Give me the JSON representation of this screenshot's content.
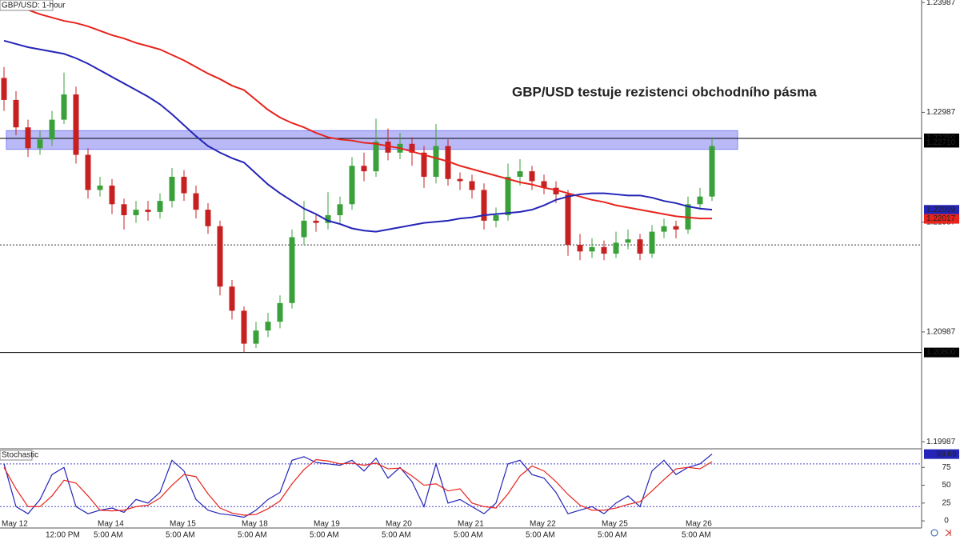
{
  "chart_data": [
    {
      "type": "candlestick",
      "title": "GBP/USD: 1-hour",
      "annotation": "GBP/USD testuje rezistenci obchodního pásma",
      "categories": [
        "May 12",
        null,
        null,
        null,
        null,
        null,
        null,
        null,
        "May 14",
        null,
        null,
        null,
        null,
        null,
        "May 15",
        null,
        null,
        null,
        null,
        null,
        "May 18",
        null,
        null,
        null,
        null,
        null,
        "May 19",
        null,
        null,
        null,
        null,
        null,
        "May 20",
        null,
        null,
        null,
        null,
        null,
        "May 21",
        null,
        null,
        null,
        null,
        null,
        "May 22",
        null,
        null,
        null,
        null,
        null,
        "May 25",
        null,
        null,
        null,
        null,
        null,
        null,
        "May 26",
        null,
        null
      ],
      "times": [
        null,
        null,
        null,
        null,
        "12:00 PM",
        null,
        null,
        null,
        "5:00 AM",
        null,
        null,
        null,
        null,
        null,
        "5:00 AM",
        null,
        null,
        null,
        null,
        null,
        "5:00 AM",
        null,
        null,
        null,
        null,
        null,
        "5:00 AM",
        null,
        null,
        null,
        null,
        null,
        "5:00 AM",
        null,
        null,
        null,
        null,
        null,
        "5:00 AM",
        null,
        null,
        null,
        null,
        null,
        "5:00 AM",
        null,
        null,
        null,
        null,
        null,
        "5:00 AM",
        null,
        null,
        null,
        null,
        null,
        null,
        "5:00 AM",
        null,
        null
      ],
      "ohlc": [
        [
          1.233,
          1.234,
          1.23,
          1.231
        ],
        [
          1.231,
          1.2318,
          1.2278,
          1.2285
        ],
        [
          1.2285,
          1.2292,
          1.2258,
          1.2266
        ],
        [
          1.2266,
          1.2282,
          1.226,
          1.2274
        ],
        [
          1.2274,
          1.23,
          1.2268,
          1.2292
        ],
        [
          1.2292,
          1.2335,
          1.2288,
          1.2315
        ],
        [
          1.2315,
          1.2322,
          1.2252,
          1.226
        ],
        [
          1.226,
          1.2266,
          1.222,
          1.2228
        ],
        [
          1.2228,
          1.224,
          1.2222,
          1.2232
        ],
        [
          1.2232,
          1.2238,
          1.2206,
          1.2215
        ],
        [
          1.2215,
          1.222,
          1.2192,
          1.2205
        ],
        [
          1.2205,
          1.2218,
          1.2198,
          1.221
        ],
        [
          1.221,
          1.2218,
          1.22,
          1.2208
        ],
        [
          1.2208,
          1.2225,
          1.2202,
          1.2218
        ],
        [
          1.2218,
          1.2248,
          1.2212,
          1.224
        ],
        [
          1.224,
          1.2246,
          1.2218,
          1.2225
        ],
        [
          1.2225,
          1.2232,
          1.2202,
          1.221
        ],
        [
          1.221,
          1.2216,
          1.2188,
          1.2195
        ],
        [
          1.2195,
          1.22,
          1.2132,
          1.214
        ],
        [
          1.214,
          1.2146,
          1.211,
          1.2118
        ],
        [
          1.2118,
          1.2122,
          1.208,
          1.2088
        ],
        [
          1.2088,
          1.2108,
          1.2084,
          1.21
        ],
        [
          1.21,
          1.2116,
          1.2094,
          1.2108
        ],
        [
          1.2108,
          1.2132,
          1.2102,
          1.2125
        ],
        [
          1.2125,
          1.2192,
          1.212,
          1.2185
        ],
        [
          1.2185,
          1.2218,
          1.2178,
          1.22
        ],
        [
          1.22,
          1.2206,
          1.219,
          1.2198
        ],
        [
          1.2198,
          1.2226,
          1.2192,
          1.2205
        ],
        [
          1.2205,
          1.2222,
          1.2198,
          1.2215
        ],
        [
          1.2215,
          1.2258,
          1.221,
          1.225
        ],
        [
          1.225,
          1.2262,
          1.2236,
          1.2245
        ],
        [
          1.2245,
          1.2293,
          1.224,
          1.2272
        ],
        [
          1.2272,
          1.2284,
          1.2255,
          1.2262
        ],
        [
          1.2262,
          1.228,
          1.2256,
          1.227
        ],
        [
          1.227,
          1.2276,
          1.225,
          1.2262
        ],
        [
          1.2262,
          1.2268,
          1.223,
          1.224
        ],
        [
          1.224,
          1.2288,
          1.2234,
          1.2268
        ],
        [
          1.2268,
          1.2274,
          1.2232,
          1.2238
        ],
        [
          1.2238,
          1.2244,
          1.2228,
          1.2236
        ],
        [
          1.2236,
          1.2242,
          1.222,
          1.2228
        ],
        [
          1.2228,
          1.2234,
          1.2192,
          1.22
        ],
        [
          1.22,
          1.2212,
          1.2194,
          1.2205
        ],
        [
          1.2205,
          1.2252,
          1.22,
          1.224
        ],
        [
          1.224,
          1.2256,
          1.2232,
          1.2245
        ],
        [
          1.2245,
          1.225,
          1.2228,
          1.2236
        ],
        [
          1.2236,
          1.2242,
          1.2224,
          1.223
        ],
        [
          1.223,
          1.2236,
          1.2216,
          1.2224
        ],
        [
          1.2224,
          1.2228,
          1.2168,
          1.2178
        ],
        [
          1.2178,
          1.2188,
          1.2164,
          1.2172
        ],
        [
          1.2172,
          1.2184,
          1.2166,
          1.2176
        ],
        [
          1.2176,
          1.2182,
          1.2164,
          1.217
        ],
        [
          1.217,
          1.219,
          1.2166,
          1.218
        ],
        [
          1.218,
          1.2192,
          1.2174,
          1.2183
        ],
        [
          1.2183,
          1.2188,
          1.2164,
          1.217
        ],
        [
          1.217,
          1.2196,
          1.2166,
          1.219
        ],
        [
          1.219,
          1.2202,
          1.2184,
          1.2195
        ],
        [
          1.2195,
          1.22,
          1.2184,
          1.2192
        ],
        [
          1.2192,
          1.2222,
          1.2188,
          1.2215
        ],
        [
          1.2215,
          1.223,
          1.221,
          1.2222
        ],
        [
          1.2222,
          1.2276,
          1.2218,
          1.2268
        ]
      ],
      "up_color": "#3aa13a",
      "down_color": "#c62020",
      "series": [
        {
          "color": "#e8231c",
          "values": [
            1.24,
            1.2396,
            1.2392,
            1.2388,
            1.2385,
            1.2382,
            1.238,
            1.2377,
            1.2373,
            1.2369,
            1.2366,
            1.2362,
            1.2359,
            1.2356,
            1.2351,
            1.2346,
            1.234,
            1.2334,
            1.2329,
            1.2323,
            1.2319,
            1.231,
            1.2301,
            1.2294,
            1.2289,
            1.2285,
            1.228,
            1.2276,
            1.2274,
            1.2273,
            1.2271,
            1.227,
            1.2268,
            1.2266,
            1.2263,
            1.226,
            1.2257,
            1.2254,
            1.225,
            1.2247,
            1.2244,
            1.2241,
            1.2238,
            1.2235,
            1.2233,
            1.223,
            1.2228,
            1.2225,
            1.2222,
            1.2219,
            1.2217,
            1.2214,
            1.2212,
            1.221,
            1.2208,
            1.2206,
            1.2204,
            1.2203,
            1.2202,
            1.2202
          ]
        },
        {
          "color": "#2424b8",
          "values": [
            1.2364,
            1.2361,
            1.2358,
            1.2356,
            1.2354,
            1.2352,
            1.2348,
            1.2343,
            1.2337,
            1.2331,
            1.2325,
            1.2319,
            1.2313,
            1.2306,
            1.2297,
            1.2287,
            1.2277,
            1.2268,
            1.2262,
            1.2257,
            1.2253,
            1.2243,
            1.2233,
            1.2225,
            1.2218,
            1.2211,
            1.2206,
            1.22,
            1.2197,
            1.2193,
            1.2191,
            1.219,
            1.2192,
            1.2194,
            1.2196,
            1.2198,
            1.2199,
            1.22,
            1.2202,
            1.2203,
            1.2205,
            1.2206,
            1.2207,
            1.2208,
            1.221,
            1.2214,
            1.2219,
            1.2222,
            1.2224,
            1.2225,
            1.2225,
            1.2224,
            1.2223,
            1.2223,
            1.2221,
            1.2218,
            1.2216,
            1.2213,
            1.2211,
            1.221
          ]
        }
      ],
      "ylim": [
        1.1993,
        1.2401
      ],
      "yticks": [
        1.19987,
        1.20987,
        1.21987,
        1.22987,
        1.23987
      ],
      "zone": [
        1.2265,
        1.2282
      ],
      "zone_color": "#8080f0",
      "hlines": [
        1.2275,
        1.208
      ],
      "dotted_line": 1.2178,
      "price_labels": [
        {
          "value": 1.2275,
          "label": "1.22750",
          "color": "#000000"
        },
        {
          "value": 1.2271,
          "label": "1.22710",
          "color": "#000000"
        },
        {
          "value": 1.22099,
          "label": "1.22099",
          "color": "#2424b8"
        },
        {
          "value": 1.22017,
          "label": "1.22017",
          "color": "#e8231c"
        },
        {
          "value": 1.208,
          "label": "1.20800",
          "color": "#000000"
        }
      ]
    },
    {
      "type": "line",
      "title": "Stochastic",
      "series": [
        {
          "color": "#2424b8",
          "values": [
            80,
            20,
            10,
            30,
            65,
            75,
            20,
            10,
            15,
            18,
            12,
            30,
            25,
            40,
            85,
            70,
            30,
            15,
            10,
            8,
            5,
            15,
            30,
            40,
            85,
            90,
            82,
            80,
            78,
            85,
            70,
            88,
            60,
            75,
            55,
            20,
            80,
            25,
            30,
            20,
            10,
            25,
            80,
            85,
            65,
            60,
            40,
            10,
            15,
            20,
            10,
            25,
            35,
            20,
            70,
            85,
            65,
            75,
            80,
            93.69
          ]
        },
        {
          "color": "#e8231c",
          "values": [
            75,
            45,
            20,
            20,
            35,
            57,
            53,
            35,
            15,
            14,
            15,
            20,
            22,
            32,
            50,
            65,
            62,
            38,
            18,
            11,
            8,
            9,
            17,
            28,
            52,
            72,
            86,
            84,
            80,
            81,
            78,
            81,
            73,
            74,
            63,
            50,
            52,
            42,
            45,
            25,
            20,
            18,
            38,
            63,
            77,
            70,
            55,
            37,
            22,
            15,
            15,
            18,
            23,
            27,
            42,
            58,
            73,
            75,
            73,
            83
          ]
        }
      ],
      "ylim": [
        -10,
        100
      ],
      "yticks": [
        0,
        25,
        50,
        75
      ],
      "levels": [
        20,
        80
      ],
      "level_color": "#4a4acc"
    }
  ]
}
